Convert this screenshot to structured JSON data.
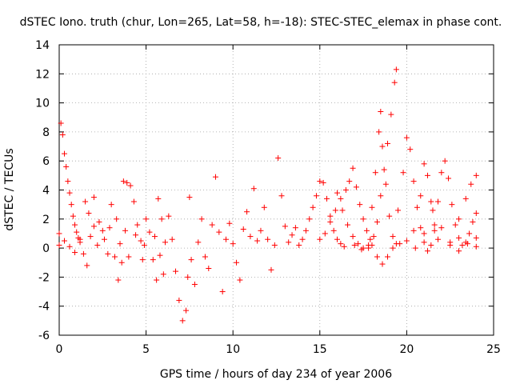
{
  "chart_data": {
    "type": "scatter",
    "title": "dSTEC Iono. truth (chur, Lon=265, Lat=58, h=-18): STEC-STEC_elemax in phase cont.",
    "xlabel": "GPS time / hours of day 234 of year 2006",
    "ylabel": "dSTEC  / TECUs",
    "xlim": [
      0,
      25
    ],
    "ylim": [
      -6,
      14
    ],
    "x_ticks": [
      0,
      5,
      10,
      15,
      20,
      25
    ],
    "y_ticks": [
      -6,
      -4,
      -2,
      0,
      2,
      4,
      6,
      8,
      10,
      12,
      14
    ],
    "grid": true,
    "marker": "+",
    "color": "#ff0000",
    "series": [
      {
        "points": [
          [
            0.0,
            1.0
          ],
          [
            0.1,
            8.6
          ],
          [
            0.2,
            7.8
          ],
          [
            0.3,
            6.5
          ],
          [
            0.4,
            5.6
          ],
          [
            0.5,
            4.6
          ],
          [
            0.6,
            3.8
          ],
          [
            0.7,
            3.0
          ],
          [
            0.8,
            2.2
          ],
          [
            0.9,
            1.6
          ],
          [
            1.0,
            1.1
          ],
          [
            1.1,
            0.7
          ],
          [
            1.2,
            0.4
          ],
          [
            0.0,
            0.2
          ],
          [
            0.3,
            0.5
          ],
          [
            0.6,
            0.1
          ],
          [
            0.9,
            -0.3
          ],
          [
            1.2,
            0.6
          ],
          [
            1.4,
            -0.4
          ],
          [
            1.6,
            -1.2
          ],
          [
            1.8,
            0.8
          ],
          [
            2.0,
            1.5
          ],
          [
            2.2,
            0.2
          ],
          [
            2.5,
            1.2
          ],
          [
            2.8,
            -0.4
          ],
          [
            1.5,
            3.2
          ],
          [
            1.7,
            2.4
          ],
          [
            2.0,
            3.5
          ],
          [
            2.3,
            1.8
          ],
          [
            2.6,
            0.6
          ],
          [
            2.9,
            1.4
          ],
          [
            3.2,
            -0.6
          ],
          [
            3.4,
            -2.2
          ],
          [
            3.5,
            0.3
          ],
          [
            3.7,
            4.6
          ],
          [
            3.9,
            4.5
          ],
          [
            4.1,
            4.3
          ],
          [
            4.3,
            3.2
          ],
          [
            4.5,
            1.6
          ],
          [
            4.7,
            0.5
          ],
          [
            4.9,
            0.2
          ],
          [
            3.0,
            3.0
          ],
          [
            3.3,
            2.0
          ],
          [
            3.6,
            -1.0
          ],
          [
            3.8,
            1.2
          ],
          [
            4.0,
            -0.6
          ],
          [
            4.4,
            0.9
          ],
          [
            4.8,
            -0.8
          ],
          [
            5.0,
            2.0
          ],
          [
            5.2,
            1.1
          ],
          [
            5.4,
            -0.8
          ],
          [
            5.6,
            -2.2
          ],
          [
            5.8,
            -0.5
          ],
          [
            6.0,
            -1.8
          ],
          [
            5.5,
            0.8
          ],
          [
            5.7,
            3.4
          ],
          [
            5.9,
            2.0
          ],
          [
            6.1,
            0.4
          ],
          [
            6.3,
            2.2
          ],
          [
            6.5,
            0.6
          ],
          [
            6.7,
            -1.6
          ],
          [
            6.9,
            -3.6
          ],
          [
            7.1,
            -5.0
          ],
          [
            7.3,
            -4.3
          ],
          [
            7.4,
            -2.0
          ],
          [
            7.5,
            3.5
          ],
          [
            7.6,
            -0.8
          ],
          [
            7.8,
            -2.5
          ],
          [
            8.0,
            0.4
          ],
          [
            8.2,
            2.0
          ],
          [
            8.4,
            -0.6
          ],
          [
            8.6,
            -1.4
          ],
          [
            8.8,
            1.6
          ],
          [
            9.0,
            4.9
          ],
          [
            9.2,
            1.1
          ],
          [
            9.4,
            -3.0
          ],
          [
            9.6,
            0.6
          ],
          [
            9.8,
            1.7
          ],
          [
            10.0,
            0.3
          ],
          [
            10.2,
            -1.0
          ],
          [
            10.4,
            -2.2
          ],
          [
            10.6,
            1.3
          ],
          [
            10.8,
            2.5
          ],
          [
            11.0,
            0.8
          ],
          [
            11.2,
            4.1
          ],
          [
            11.4,
            0.5
          ],
          [
            11.6,
            1.2
          ],
          [
            11.8,
            2.8
          ],
          [
            12.0,
            0.6
          ],
          [
            12.2,
            -1.5
          ],
          [
            12.4,
            0.2
          ],
          [
            12.6,
            6.2
          ],
          [
            12.8,
            3.6
          ],
          [
            13.0,
            1.5
          ],
          [
            13.2,
            0.4
          ],
          [
            13.4,
            0.9
          ],
          [
            13.6,
            1.4
          ],
          [
            13.8,
            0.2
          ],
          [
            14.0,
            0.6
          ],
          [
            14.2,
            1.2
          ],
          [
            14.4,
            2.0
          ],
          [
            14.6,
            2.8
          ],
          [
            14.8,
            3.6
          ],
          [
            15.0,
            4.6
          ],
          [
            15.2,
            4.5
          ],
          [
            15.4,
            3.4
          ],
          [
            15.6,
            2.2
          ],
          [
            15.8,
            1.2
          ],
          [
            16.0,
            0.6
          ],
          [
            16.2,
            0.3
          ],
          [
            16.4,
            0.1
          ],
          [
            15.0,
            0.6
          ],
          [
            15.3,
            1.0
          ],
          [
            15.6,
            1.8
          ],
          [
            15.9,
            2.6
          ],
          [
            16.2,
            3.4
          ],
          [
            16.5,
            4.0
          ],
          [
            16.7,
            4.6
          ],
          [
            16.9,
            5.5
          ],
          [
            17.1,
            4.2
          ],
          [
            17.3,
            3.0
          ],
          [
            17.5,
            2.0
          ],
          [
            17.7,
            1.2
          ],
          [
            17.9,
            0.6
          ],
          [
            16.0,
            3.8
          ],
          [
            16.3,
            2.6
          ],
          [
            16.6,
            1.6
          ],
          [
            16.9,
            0.8
          ],
          [
            17.2,
            0.3
          ],
          [
            17.5,
            0.0
          ],
          [
            17.8,
            0.2
          ],
          [
            18.1,
            0.8
          ],
          [
            18.3,
            1.8
          ],
          [
            18.5,
            3.6
          ],
          [
            18.7,
            5.4
          ],
          [
            18.9,
            7.2
          ],
          [
            19.1,
            9.2
          ],
          [
            19.3,
            11.4
          ],
          [
            19.4,
            12.3
          ],
          [
            17.0,
            0.2
          ],
          [
            17.4,
            -0.1
          ],
          [
            17.8,
            0.0
          ],
          [
            18.0,
            2.8
          ],
          [
            18.2,
            5.2
          ],
          [
            18.4,
            8.0
          ],
          [
            18.5,
            9.4
          ],
          [
            18.6,
            7.0
          ],
          [
            18.8,
            4.4
          ],
          [
            19.0,
            2.2
          ],
          [
            19.2,
            0.8
          ],
          [
            19.4,
            0.3
          ],
          [
            18.0,
            0.2
          ],
          [
            18.3,
            -0.6
          ],
          [
            18.6,
            -1.1
          ],
          [
            18.9,
            -0.6
          ],
          [
            19.2,
            0.0
          ],
          [
            19.6,
            0.3
          ],
          [
            20.0,
            0.5
          ],
          [
            20.4,
            1.2
          ],
          [
            20.8,
            3.6
          ],
          [
            21.0,
            5.8
          ],
          [
            21.2,
            5.0
          ],
          [
            21.4,
            3.2
          ],
          [
            21.6,
            1.6
          ],
          [
            21.8,
            0.6
          ],
          [
            19.5,
            2.6
          ],
          [
            19.8,
            5.2
          ],
          [
            20.0,
            7.6
          ],
          [
            20.2,
            6.8
          ],
          [
            20.4,
            4.6
          ],
          [
            20.6,
            2.8
          ],
          [
            20.8,
            1.4
          ],
          [
            21.0,
            0.4
          ],
          [
            21.2,
            -0.2
          ],
          [
            21.4,
            0.2
          ],
          [
            21.6,
            1.2
          ],
          [
            21.8,
            3.2
          ],
          [
            22.0,
            5.2
          ],
          [
            22.2,
            6.0
          ],
          [
            22.4,
            4.8
          ],
          [
            22.6,
            3.0
          ],
          [
            22.8,
            1.6
          ],
          [
            23.0,
            0.7
          ],
          [
            23.2,
            0.2
          ],
          [
            23.4,
            0.4
          ],
          [
            23.6,
            1.0
          ],
          [
            23.8,
            1.8
          ],
          [
            24.0,
            2.4
          ],
          [
            22.5,
            0.2
          ],
          [
            23.0,
            2.0
          ],
          [
            23.4,
            3.4
          ],
          [
            23.7,
            4.4
          ],
          [
            24.0,
            5.0
          ],
          [
            20.5,
            0.0
          ],
          [
            21.0,
            1.0
          ],
          [
            21.5,
            2.6
          ],
          [
            22.0,
            1.4
          ],
          [
            22.5,
            0.4
          ],
          [
            23.0,
            -0.2
          ],
          [
            23.5,
            0.3
          ],
          [
            24.0,
            0.7
          ],
          [
            24.0,
            0.1
          ]
        ]
      }
    ]
  }
}
